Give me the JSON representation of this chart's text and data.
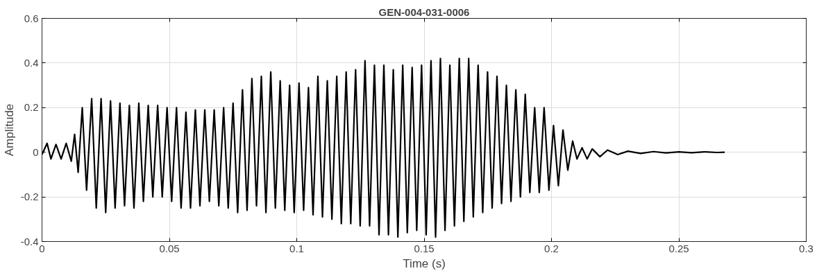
{
  "chart_data": {
    "type": "line",
    "title": "GEN-004-031-0006",
    "xlabel": "Time (s)",
    "ylabel": "Amplitude",
    "xlim": [
      0,
      0.3
    ],
    "xticks": [
      0,
      0.05,
      0.1,
      0.15,
      0.2,
      0.25,
      0.3
    ],
    "ylim": [
      -0.4,
      0.6
    ],
    "yticks": [
      -0.4,
      -0.2,
      0,
      0.2,
      0.4,
      0.6
    ],
    "grid": true,
    "line_style": "solid",
    "series": [
      {
        "color": "#000000",
        "x": [
          0,
          0.002,
          0.0035,
          0.0055,
          0.0075,
          0.0095,
          0.0115,
          0.0128,
          0.0142,
          0.0158,
          0.0175,
          0.0195,
          0.0213,
          0.0232,
          0.025,
          0.0269,
          0.0287,
          0.0306,
          0.0324,
          0.0343,
          0.0361,
          0.038,
          0.0398,
          0.0417,
          0.0435,
          0.0454,
          0.0472,
          0.0491,
          0.0509,
          0.0528,
          0.0546,
          0.0565,
          0.0583,
          0.0602,
          0.062,
          0.0639,
          0.0657,
          0.0676,
          0.0694,
          0.0713,
          0.0731,
          0.075,
          0.0768,
          0.0787,
          0.0805,
          0.0824,
          0.0842,
          0.0861,
          0.0879,
          0.0898,
          0.0916,
          0.0935,
          0.0953,
          0.0972,
          0.099,
          0.1009,
          0.1027,
          0.1046,
          0.1064,
          0.1083,
          0.1101,
          0.112,
          0.1138,
          0.1157,
          0.1175,
          0.1194,
          0.1212,
          0.1231,
          0.1249,
          0.1268,
          0.1286,
          0.1305,
          0.1323,
          0.1342,
          0.136,
          0.1379,
          0.1397,
          0.1416,
          0.1434,
          0.1453,
          0.1471,
          0.149,
          0.1508,
          0.1527,
          0.1545,
          0.1564,
          0.1582,
          0.1601,
          0.1619,
          0.1638,
          0.1656,
          0.1675,
          0.1693,
          0.1712,
          0.173,
          0.1749,
          0.1767,
          0.1786,
          0.1804,
          0.1823,
          0.1841,
          0.186,
          0.1878,
          0.1897,
          0.1915,
          0.1934,
          0.1952,
          0.1971,
          0.199,
          0.2008,
          0.2027,
          0.2045,
          0.2064,
          0.2083,
          0.21,
          0.212,
          0.214,
          0.216,
          0.219,
          0.222,
          0.226,
          0.23,
          0.235,
          0.24,
          0.245,
          0.25,
          0.255,
          0.26,
          0.265,
          0.268
        ],
        "values": [
          -0.01,
          0.04,
          -0.03,
          0.035,
          -0.03,
          0.04,
          -0.04,
          0.08,
          -0.09,
          0.2,
          -0.17,
          0.24,
          -0.25,
          0.24,
          -0.27,
          0.23,
          -0.25,
          0.22,
          -0.24,
          0.21,
          -0.25,
          0.22,
          -0.22,
          0.21,
          -0.2,
          0.21,
          -0.2,
          0.2,
          -0.22,
          0.2,
          -0.25,
          0.18,
          -0.25,
          0.19,
          -0.24,
          0.19,
          -0.22,
          0.19,
          -0.24,
          0.2,
          -0.25,
          0.22,
          -0.27,
          0.28,
          -0.26,
          0.33,
          -0.24,
          0.34,
          -0.27,
          0.36,
          -0.25,
          0.32,
          -0.26,
          0.3,
          -0.27,
          0.31,
          -0.26,
          0.29,
          -0.28,
          0.34,
          -0.29,
          0.32,
          -0.3,
          0.34,
          -0.32,
          0.36,
          -0.32,
          0.37,
          -0.33,
          0.41,
          -0.33,
          0.39,
          -0.37,
          0.39,
          -0.37,
          0.37,
          -0.38,
          0.39,
          -0.36,
          0.38,
          -0.35,
          0.39,
          -0.37,
          0.41,
          -0.38,
          0.42,
          -0.35,
          0.39,
          -0.33,
          0.42,
          -0.31,
          0.42,
          -0.29,
          0.39,
          -0.27,
          0.36,
          -0.25,
          0.34,
          -0.23,
          0.3,
          -0.22,
          0.28,
          -0.2,
          0.26,
          -0.18,
          0.2,
          -0.18,
          0.2,
          -0.17,
          0.12,
          -0.15,
          0.1,
          -0.08,
          0.05,
          -0.03,
          0.02,
          -0.03,
          0.015,
          -0.02,
          0.01,
          -0.01,
          0.005,
          -0.005,
          0.003,
          -0.003,
          0.002,
          -0.002,
          0.002,
          -0.001,
          0
        ]
      }
    ]
  }
}
